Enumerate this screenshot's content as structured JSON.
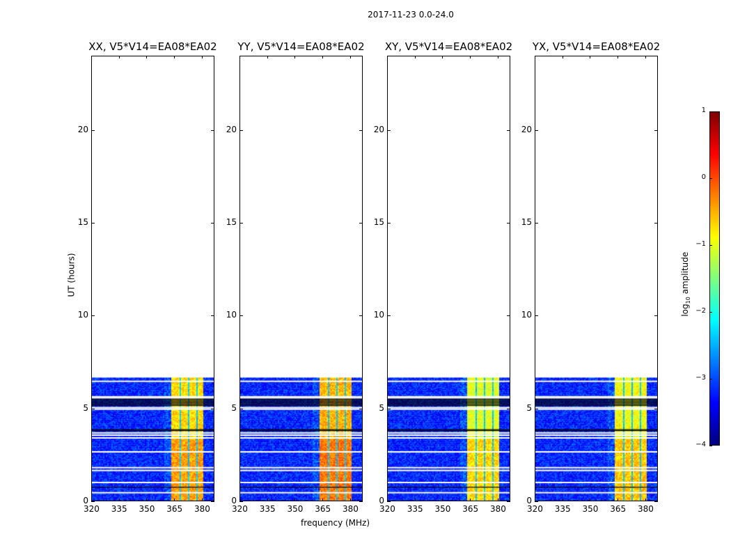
{
  "figure_title": "2017-11-23 0.0-24.0",
  "chart_data": [
    {
      "type": "heatmap",
      "title": "XX, V5*V14=EA08*EA02",
      "band_peak": -0.5
    },
    {
      "type": "heatmap",
      "title": "YY, V5*V14=EA08*EA02",
      "band_peak": -0.3
    },
    {
      "type": "heatmap",
      "title": "XY, V5*V14=EA08*EA02",
      "band_peak": -0.8
    },
    {
      "type": "heatmap",
      "title": "YX, V5*V14=EA08*EA02",
      "band_peak": -0.7
    }
  ],
  "axes": {
    "xlabel": "frequency (MHz)",
    "ylabel": "UT (hours)",
    "xlim": [
      320,
      386.8
    ],
    "ylim": [
      0,
      24
    ],
    "xticks": [
      "320",
      "335",
      "350",
      "365",
      "380"
    ],
    "xtick_values": [
      320,
      335,
      350,
      365,
      380
    ],
    "yticks": [
      "0",
      "5",
      "10",
      "15",
      "20"
    ],
    "ytick_values": [
      0,
      5,
      10,
      15,
      20
    ],
    "data_extent_hours": [
      0,
      6.7
    ],
    "signal_band_mhz": [
      363,
      380
    ],
    "gap_channels_mhz": [
      367.5,
      372,
      376.5
    ],
    "background_level": -3.2,
    "flagged_hours": [
      0.5,
      1.05,
      1.7,
      1.85,
      2.7,
      3.45,
      3.6,
      3.72,
      5.0,
      5.08,
      5.6,
      5.67,
      6.5
    ],
    "dark_hours": [
      0.8,
      3.85,
      3.9,
      5.2,
      5.27,
      5.34,
      5.41,
      5.48,
      5.55
    ]
  },
  "colorbar": {
    "label_prefix": "log",
    "label_sub": "10",
    "label_suffix": " amplitude",
    "range": [
      -4,
      1
    ],
    "ticks": [
      "1",
      "0",
      "−1",
      "−2",
      "−3",
      "−4"
    ],
    "tick_values": [
      1,
      0,
      -1,
      -2,
      -3,
      -4
    ],
    "colormap": "jet"
  }
}
